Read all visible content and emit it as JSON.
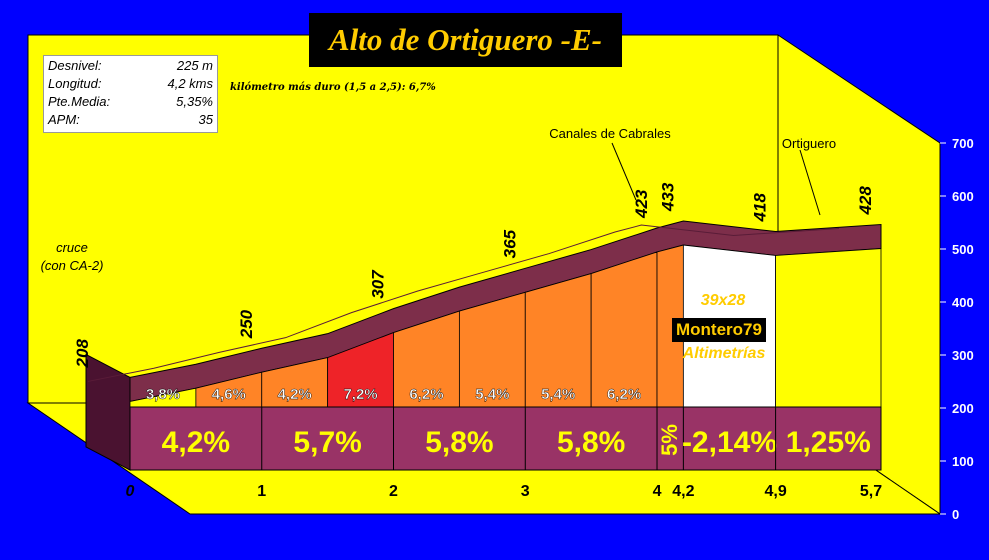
{
  "chart_data": {
    "type": "area",
    "title": "Alto de Ortiguero -E-",
    "stats": [
      {
        "label": "Desnivel:",
        "value": "225 m"
      },
      {
        "label": "Longitud:",
        "value": "4,2 kms"
      },
      {
        "label": "Pte.Media:",
        "value": "5,35%"
      },
      {
        "label": "APM:",
        "value": "35"
      }
    ],
    "note": "kilómetro más duro (1,5 a 2,5): 6,7%",
    "y_ticks": [
      "0",
      "100",
      "200",
      "300",
      "400",
      "500",
      "600",
      "700"
    ],
    "ylim": [
      0,
      700
    ],
    "x_ticks": [
      {
        "km": 0,
        "label": "0"
      },
      {
        "km": 1,
        "label": "1"
      },
      {
        "km": 2,
        "label": "2"
      },
      {
        "km": 3,
        "label": "3"
      },
      {
        "km": 4,
        "label": "4"
      },
      {
        "km": 4.2,
        "label": "4,2"
      },
      {
        "km": 4.9,
        "label": "4,9"
      },
      {
        "km": 5.7,
        "label": "5,7"
      }
    ],
    "profile": [
      {
        "km": 0,
        "alt": 208
      },
      {
        "km": 0.5,
        "alt": 227
      },
      {
        "km": 1.0,
        "alt": 250
      },
      {
        "km": 1.5,
        "alt": 271
      },
      {
        "km": 2.0,
        "alt": 307
      },
      {
        "km": 2.5,
        "alt": 338
      },
      {
        "km": 3.0,
        "alt": 365
      },
      {
        "km": 3.5,
        "alt": 392
      },
      {
        "km": 4.0,
        "alt": 423
      },
      {
        "km": 4.2,
        "alt": 433
      },
      {
        "km": 4.9,
        "alt": 418
      },
      {
        "km": 5.7,
        "alt": 428
      }
    ],
    "altitude_labels": [
      {
        "km": 0,
        "text": "208"
      },
      {
        "km": 1.0,
        "text": "250"
      },
      {
        "km": 2.0,
        "text": "307"
      },
      {
        "km": 3.0,
        "text": "365"
      },
      {
        "km": 4.0,
        "text": "423"
      },
      {
        "km": 4.2,
        "text": "433"
      },
      {
        "km": 4.9,
        "text": "418"
      },
      {
        "km": 5.7,
        "text": "428"
      }
    ],
    "segments": [
      {
        "from": 0,
        "to": 0.5,
        "grade": "3,8%",
        "color": "#ffff00"
      },
      {
        "from": 0.5,
        "to": 1.0,
        "grade": "4,6%",
        "color": "#ff8426"
      },
      {
        "from": 1.0,
        "to": 1.5,
        "grade": "4,2%",
        "color": "#ff8426"
      },
      {
        "from": 1.5,
        "to": 2.0,
        "grade": "7,2%",
        "color": "#ee2328"
      },
      {
        "from": 2.0,
        "to": 2.5,
        "grade": "6,2%",
        "color": "#ff8426"
      },
      {
        "from": 2.5,
        "to": 3.0,
        "grade": "5,4%",
        "color": "#ff8426"
      },
      {
        "from": 3.0,
        "to": 3.5,
        "grade": "5,4%",
        "color": "#ff8426"
      },
      {
        "from": 3.5,
        "to": 4.0,
        "grade": "6,2%",
        "color": "#ff8426"
      },
      {
        "from": 4.0,
        "to": 4.2,
        "grade": "",
        "color": "#ff8426"
      },
      {
        "from": 4.2,
        "to": 4.9,
        "grade": "",
        "color": "#ffffff"
      },
      {
        "from": 4.9,
        "to": 5.7,
        "grade": "",
        "color": "#ffff00"
      }
    ],
    "km_grades": [
      {
        "from": 0,
        "to": 1,
        "text": "4,2%"
      },
      {
        "from": 1,
        "to": 2,
        "text": "5,7%"
      },
      {
        "from": 2,
        "to": 3,
        "text": "5,8%"
      },
      {
        "from": 3,
        "to": 4,
        "text": "5,8%"
      },
      {
        "from": 4,
        "to": 4.2,
        "text": "5%"
      },
      {
        "from": 4.2,
        "to": 4.9,
        "text": "-2,14%"
      },
      {
        "from": 4.9,
        "to": 5.7,
        "text": "1,25%"
      }
    ],
    "places": [
      {
        "km": 0,
        "lines": [
          "cruce",
          "(con CA-2)"
        ]
      },
      {
        "km": 4.2,
        "lines": [
          "Canales de Cabrales"
        ]
      },
      {
        "km": 5.2,
        "lines": [
          "Ortiguero"
        ]
      }
    ],
    "watermark": {
      "code": "39x28",
      "author": "Montero79",
      "site": "Altimetrías"
    },
    "colors": {
      "background": "#0000ff",
      "wall": "#ffff00",
      "floor": "#ffff00",
      "base_band": "#993366",
      "top_band": "#7d2e4a",
      "dark_side": "#4a1230"
    }
  }
}
